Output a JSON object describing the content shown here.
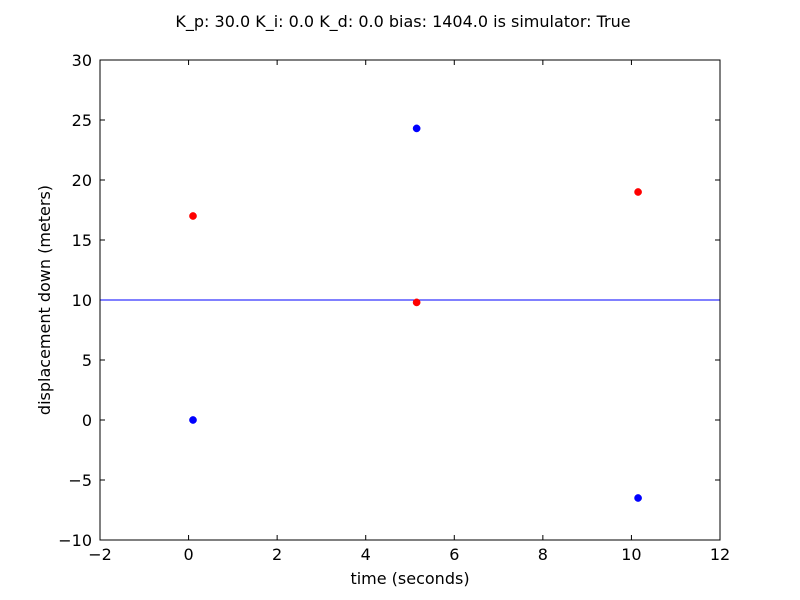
{
  "chart_data": {
    "type": "scatter",
    "title": "K_p: 30.0 K_i: 0.0 K_d: 0.0 bias: 1404.0 is simulator: True",
    "xlabel": "time (seconds)",
    "ylabel": "displacement down (meters)",
    "xlim": [
      -2,
      12
    ],
    "ylim": [
      -10,
      30
    ],
    "xticks": [
      -2,
      0,
      2,
      4,
      6,
      8,
      10,
      12
    ],
    "yticks": [
      -10,
      -5,
      0,
      5,
      10,
      15,
      20,
      25,
      30
    ],
    "grid": false,
    "series": [
      {
        "color": "#0000ff",
        "points": [
          [
            0.1,
            0.0
          ],
          [
            5.15,
            24.3
          ],
          [
            10.15,
            -6.5
          ]
        ]
      },
      {
        "color": "#ff0000",
        "points": [
          [
            0.1,
            17.0
          ],
          [
            5.15,
            9.8
          ],
          [
            10.15,
            19.0
          ]
        ]
      }
    ],
    "reference_line": {
      "y": 10,
      "color": "#0000ff"
    }
  }
}
